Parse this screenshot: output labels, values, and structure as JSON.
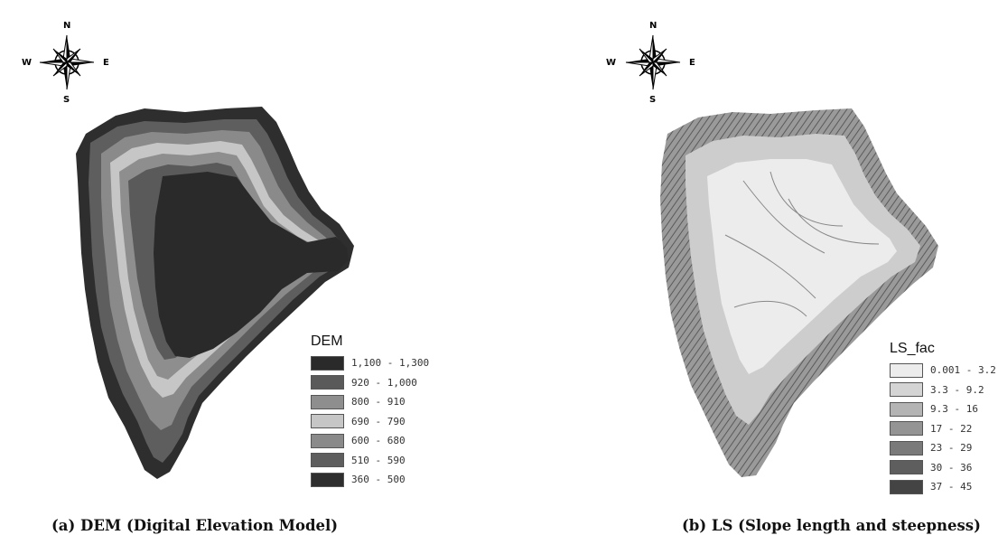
{
  "panels": [
    {
      "legend_title": "DEM",
      "classes": [
        {
          "label": "1,100 - 1,300",
          "color": "#2a2a2a"
        },
        {
          "label": "920 - 1,000",
          "color": "#5a5a5a"
        },
        {
          "label": "800 - 910",
          "color": "#8e8e8e"
        },
        {
          "label": "690 - 790",
          "color": "#c6c6c6"
        },
        {
          "label": "600 - 680",
          "color": "#8a8a8a"
        },
        {
          "label": "510 - 590",
          "color": "#5e5e5e"
        },
        {
          "label": "360 - 500",
          "color": "#2e2e2e"
        }
      ],
      "caption": "(a)  DEM (Digital Elevation Model)"
    },
    {
      "legend_title": "LS_fac",
      "classes": [
        {
          "label": "0.001 - 3.2",
          "color": "#ececec"
        },
        {
          "label": "3.3 - 9.2",
          "color": "#d4d4d4"
        },
        {
          "label": "9.3 - 16",
          "color": "#b4b4b4"
        },
        {
          "label": "17 - 22",
          "color": "#949494"
        },
        {
          "label": "23 - 29",
          "color": "#7a7a7a"
        },
        {
          "label": "30 - 36",
          "color": "#5e5e5e"
        },
        {
          "label": "37 - 45",
          "color": "#444444"
        }
      ],
      "caption": "(b)  LS (Slope length and steepness)"
    }
  ],
  "compass": {
    "north": "N",
    "south": "S",
    "east": "E",
    "west": "W"
  }
}
